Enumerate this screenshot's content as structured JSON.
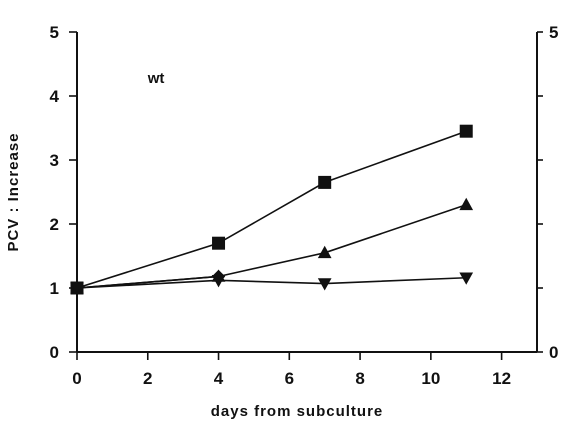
{
  "chart_data": {
    "type": "line",
    "annotation": "wt",
    "xlabel": "days from subculture",
    "ylabel": "PCV : Increase",
    "xlim": [
      0,
      13
    ],
    "ylim": [
      0,
      5
    ],
    "x_ticks": [
      0,
      2,
      4,
      6,
      8,
      10,
      12
    ],
    "y_ticks": [
      0,
      1,
      2,
      3,
      4,
      5
    ],
    "right_axis_labels": [
      0,
      5
    ],
    "grid": false,
    "series": [
      {
        "marker": "square",
        "x": [
          0,
          4,
          7,
          11
        ],
        "y": [
          1.0,
          1.7,
          2.65,
          3.45
        ]
      },
      {
        "marker": "triangle-up",
        "x": [
          0,
          4,
          7,
          11
        ],
        "y": [
          1.0,
          1.18,
          1.55,
          2.3
        ]
      },
      {
        "marker": "diamond",
        "x": [
          0,
          4
        ],
        "y": [
          1.0,
          1.18
        ]
      },
      {
        "marker": "triangle-down",
        "x": [
          0,
          4,
          7,
          11
        ],
        "y": [
          1.0,
          1.12,
          1.07,
          1.16
        ]
      }
    ]
  }
}
